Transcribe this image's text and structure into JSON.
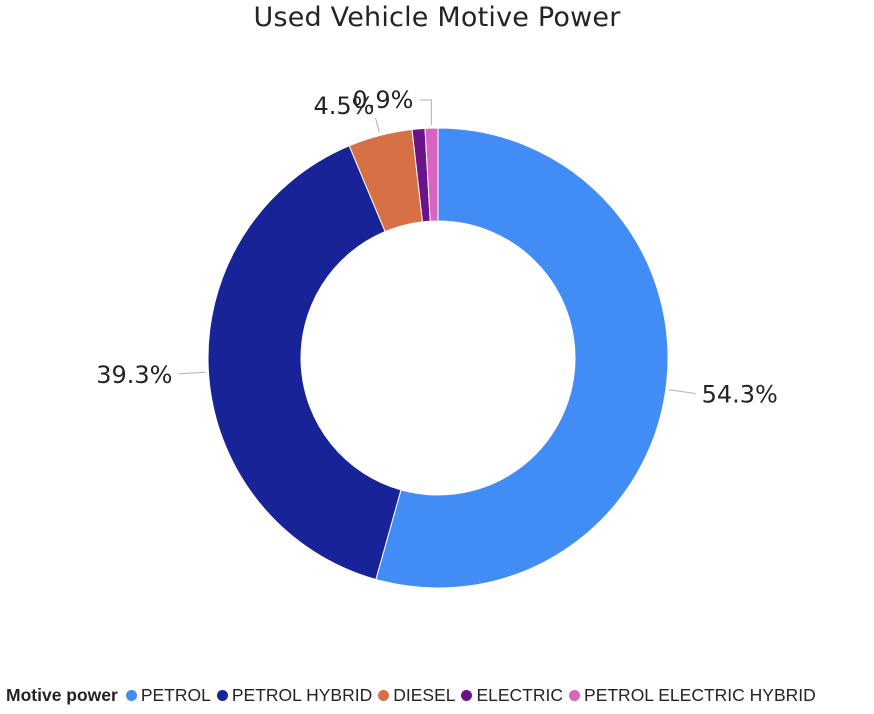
{
  "chart_data": {
    "type": "pie",
    "donut": true,
    "title": "Used Vehicle Motive Power",
    "legend_title": "Motive power",
    "legend_position": "bottom-left",
    "categories": [
      "PETROL",
      "PETROL HYBRID",
      "DIESEL",
      "ELECTRIC",
      "PETROL ELECTRIC HYBRID"
    ],
    "values": [
      54.3,
      39.3,
      4.5,
      0.9,
      0.9
    ],
    "labels": [
      "54.3%",
      "39.3%",
      "4.5%",
      "",
      "0.9%"
    ],
    "colors": [
      "#418cf5",
      "#182397",
      "#d87046",
      "#6b1388",
      "#d864c0"
    ],
    "unit": "%"
  }
}
